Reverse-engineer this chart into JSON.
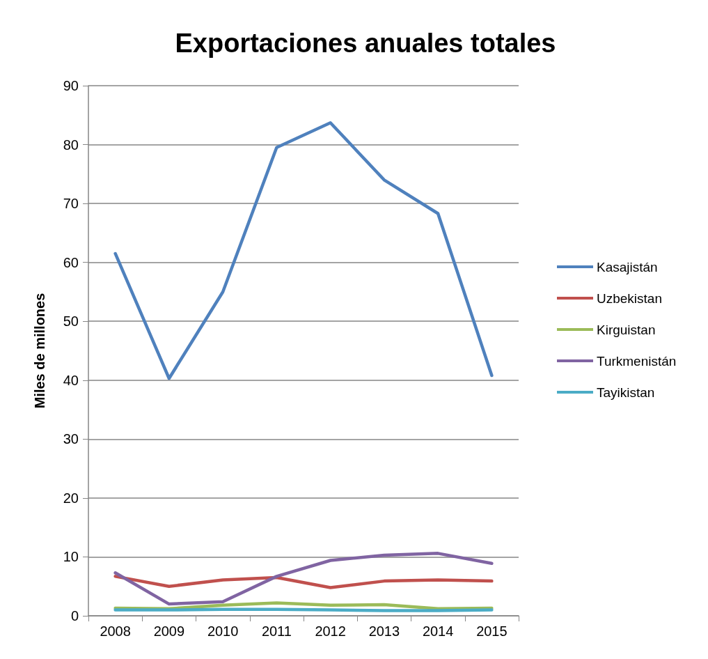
{
  "chart_data": {
    "type": "line",
    "title": "Exportaciones anuales totales",
    "ylabel": "Miles de millones",
    "categories": [
      "2008",
      "2009",
      "2010",
      "2011",
      "2012",
      "2013",
      "2014",
      "2015"
    ],
    "series": [
      {
        "name": "Kasajistán",
        "color": "#4f81bd",
        "values": [
          61.5,
          40.3,
          55,
          79.5,
          83.7,
          74,
          68.3,
          40.8
        ]
      },
      {
        "name": "Uzbekistan",
        "color": "#c0504d",
        "values": [
          6.7,
          5.0,
          6.1,
          6.5,
          4.8,
          5.9,
          6.1,
          5.9
        ]
      },
      {
        "name": "Kirguistan",
        "color": "#9bbb59",
        "values": [
          1.3,
          1.2,
          1.8,
          2.2,
          1.8,
          1.9,
          1.2,
          1.3
        ]
      },
      {
        "name": "Turkmenistán",
        "color": "#8064a2",
        "values": [
          7.3,
          2.0,
          2.4,
          6.7,
          9.4,
          10.3,
          10.6,
          8.9
        ]
      },
      {
        "name": "Tayikistan",
        "color": "#4bacc6",
        "values": [
          1.0,
          1.0,
          1.1,
          1.1,
          1.0,
          0.9,
          0.9,
          1.0
        ]
      }
    ],
    "ylim": [
      0,
      90
    ],
    "yticks": [
      0,
      10,
      20,
      30,
      40,
      50,
      60,
      70,
      80,
      90
    ],
    "grid": "y",
    "legend": "right",
    "marker": "none",
    "line_style": "solid"
  }
}
